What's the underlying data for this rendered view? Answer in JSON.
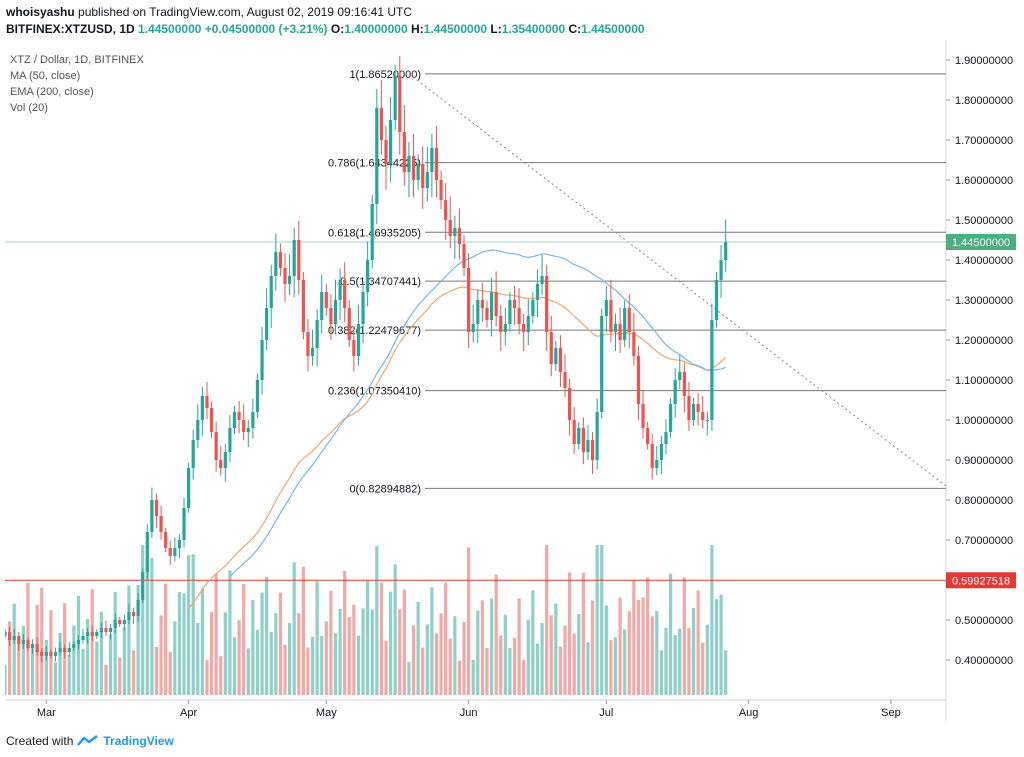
{
  "header": {
    "author": "whoisyashu",
    "published_text": " published on TradingView.com, August 02, 2019 09:16:41 UTC",
    "symbol": "BITFINEX:XTZUSD, 1D",
    "last": "1.44500000",
    "change": "+0.04500000 (+3.21%)",
    "o_label": "O:",
    "o": "1.40000000",
    "h_label": "H:",
    "h": "1.44500000",
    "l_label": "L:",
    "l": "1.35400000",
    "c_label": "C:",
    "c": "1.44500000"
  },
  "legend": {
    "title": "XTZ / Dollar, 1D, BITFINEX",
    "ma": "MA (50, close)",
    "ema": "EMA (200, close)",
    "vol": "Vol (20)"
  },
  "footer": {
    "created_with": "Created with",
    "brand": "TradingView"
  },
  "colors": {
    "up": "#26a69a",
    "down": "#ef5350",
    "vol_up": "#8fd0c8",
    "vol_down": "#f4a8a6",
    "ma": "#79b8e8",
    "ema": "#f5a46c",
    "fib": "#777777",
    "hline": "#e53935",
    "last_badge": "#4caf80"
  },
  "chart_data": {
    "type": "candlestick",
    "y_axis": {
      "min": 0.3,
      "max": 1.95,
      "ticks": [
        "1.90000000",
        "1.80000000",
        "1.70000000",
        "1.60000000",
        "1.50000000",
        "1.40000000",
        "1.30000000",
        "1.20000000",
        "1.10000000",
        "1.00000000",
        "0.90000000",
        "0.80000000",
        "0.70000000",
        "0.60000000",
        "0.50000000",
        "0.40000000"
      ]
    },
    "x_axis": {
      "labels": [
        {
          "label": "Mar",
          "date": "2019-03-01"
        },
        {
          "label": "Apr",
          "date": "2019-04-01"
        },
        {
          "label": "May",
          "date": "2019-05-01"
        },
        {
          "label": "Jun",
          "date": "2019-06-01"
        },
        {
          "label": "Jul",
          "date": "2019-07-01"
        },
        {
          "label": "Aug",
          "date": "2019-08-01"
        },
        {
          "label": "Sep",
          "date": "2019-09-01"
        }
      ]
    },
    "date_range": [
      "2019-02-20",
      "2019-09-13"
    ],
    "first_candle": "2019-02-20",
    "fib_levels": [
      {
        "ratio": "1",
        "price": 1.8652,
        "label": "1(1.86520000)"
      },
      {
        "ratio": "0.786",
        "price": 1.64344225,
        "label": "0.786(1.64344225)"
      },
      {
        "ratio": "0.618",
        "price": 1.46935205,
        "label": "0.618(1.46935205)"
      },
      {
        "ratio": "0.5",
        "price": 1.34707441,
        "label": "0.5(1.34707441)"
      },
      {
        "ratio": "0.382",
        "price": 1.22479677,
        "label": "0.382(1.22479677)"
      },
      {
        "ratio": "0.236",
        "price": 1.0735041,
        "label": "0.236(1.07350410)"
      },
      {
        "ratio": "0",
        "price": 0.82894882,
        "label": "0(0.82894882)"
      }
    ],
    "horizontal_line": {
      "price": 0.59927518,
      "label": "0.59927518"
    },
    "last_price": {
      "price": 1.445,
      "label": "1.44500000"
    },
    "trendline": {
      "from": {
        "date": "2019-05-19",
        "price": 1.8652
      },
      "to": {
        "date": "2019-09-13",
        "price": 0.835
      }
    },
    "closes": [
      0.47,
      0.45,
      0.46,
      0.44,
      0.45,
      0.43,
      0.44,
      0.42,
      0.41,
      0.42,
      0.41,
      0.42,
      0.43,
      0.42,
      0.43,
      0.44,
      0.45,
      0.46,
      0.47,
      0.46,
      0.47,
      0.48,
      0.47,
      0.48,
      0.5,
      0.49,
      0.5,
      0.52,
      0.51,
      0.55,
      0.62,
      0.72,
      0.8,
      0.76,
      0.72,
      0.68,
      0.66,
      0.68,
      0.7,
      0.78,
      0.88,
      0.95,
      1.0,
      1.06,
      1.03,
      0.97,
      0.9,
      0.88,
      0.92,
      0.98,
      1.02,
      1.0,
      0.97,
      0.98,
      1.02,
      1.1,
      1.2,
      1.28,
      1.36,
      1.42,
      1.38,
      1.34,
      1.36,
      1.45,
      1.35,
      1.22,
      1.16,
      1.18,
      1.25,
      1.32,
      1.28,
      1.24,
      1.3,
      1.35,
      1.28,
      1.2,
      1.16,
      1.24,
      1.32,
      1.4,
      1.54,
      1.78,
      1.7,
      1.64,
      1.75,
      1.86,
      1.72,
      1.62,
      1.66,
      1.6,
      1.64,
      1.58,
      1.62,
      1.68,
      1.6,
      1.55,
      1.5,
      1.46,
      1.48,
      1.44,
      1.38,
      1.22,
      1.24,
      1.3,
      1.28,
      1.25,
      1.32,
      1.26,
      1.22,
      1.24,
      1.3,
      1.28,
      1.24,
      1.22,
      1.26,
      1.3,
      1.34,
      1.36,
      1.22,
      1.14,
      1.18,
      1.12,
      1.08,
      1.0,
      0.94,
      0.98,
      0.92,
      0.95,
      0.9,
      1.02,
      1.26,
      1.3,
      1.22,
      1.24,
      1.2,
      1.28,
      1.22,
      1.16,
      1.04,
      0.98,
      0.94,
      0.88,
      0.9,
      0.94,
      0.97,
      1.04,
      1.1,
      1.12,
      1.06,
      1.0,
      1.04,
      1.02,
      1.0,
      1.0,
      1.25,
      1.35,
      1.4,
      1.445
    ],
    "ma50": [
      null,
      null,
      null,
      null,
      null,
      null,
      null,
      null,
      null,
      null,
      null,
      null,
      null,
      null,
      null,
      null,
      null,
      null,
      null,
      null,
      null,
      null,
      null,
      null,
      null,
      null,
      null,
      null,
      null,
      null,
      null,
      null,
      null,
      null,
      null,
      null,
      null,
      null,
      null,
      null,
      null,
      null,
      null,
      null,
      null,
      null,
      null,
      null,
      null,
      null,
      null,
      null,
      null,
      null,
      null,
      null,
      null,
      null,
      null,
      null,
      null,
      null,
      null,
      null,
      null,
      null,
      null,
      null,
      null,
      null,
      null,
      null,
      null,
      null,
      null,
      null,
      null,
      null,
      null,
      null,
      null,
      null,
      null,
      null,
      null,
      null,
      null,
      null,
      null,
      null,
      null,
      null,
      null,
      null,
      null,
      null,
      null,
      null,
      null,
      null,
      null,
      null,
      null,
      null,
      null,
      null,
      null,
      null,
      null,
      null,
      null,
      null,
      null,
      null,
      null,
      null,
      null,
      null,
      null,
      null,
      null,
      null,
      null,
      null,
      null,
      null,
      null,
      null,
      null,
      null,
      null,
      null,
      null,
      null,
      null,
      null,
      null,
      null,
      null,
      null,
      null,
      null,
      null,
      null,
      null,
      null,
      null,
      null,
      null,
      null,
      null,
      null,
      null,
      null,
      null,
      null,
      null
    ],
    "ema200_note": "",
    "volumes_note": ""
  }
}
